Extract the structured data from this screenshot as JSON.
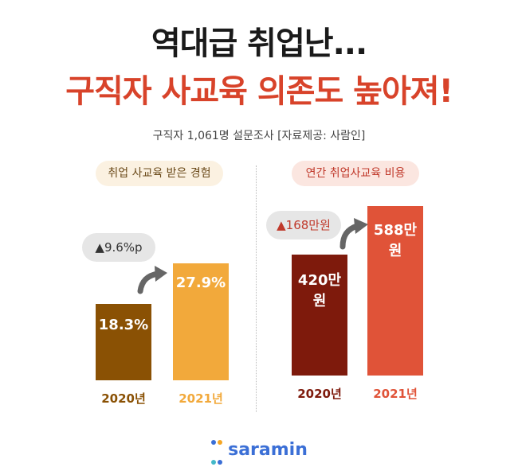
{
  "header": {
    "title_line1": "역대급 취업난...",
    "title_line2": "구직자 사교육 의존도 높아져!",
    "subtitle": "구직자 1,061명 설문조사 [자료제공: 사람인]"
  },
  "brand": {
    "logo_text": "saramin"
  },
  "colors": {
    "left_2020": "#8a5104",
    "left_2021": "#f2a93b",
    "right_2020": "#7e1a0c",
    "right_2021": "#e05338",
    "title_accent": "#d8432a",
    "logo": "#3b6fd6"
  },
  "chart_data": [
    {
      "type": "bar",
      "title": "취업 사교육 받은 경험",
      "categories": [
        "2020년",
        "2021년"
      ],
      "values": [
        18.3,
        27.9
      ],
      "value_labels": [
        "18.3%",
        "27.9%"
      ],
      "change_label": "▲9.6%p",
      "ylim": [
        0,
        30
      ]
    },
    {
      "type": "bar",
      "title": "연간 취업사교육 비용",
      "categories": [
        "2020년",
        "2021년"
      ],
      "values": [
        420,
        588
      ],
      "value_labels": [
        "420만원",
        "588만원"
      ],
      "change_label": "▲168만원",
      "ylim": [
        0,
        600
      ]
    }
  ]
}
